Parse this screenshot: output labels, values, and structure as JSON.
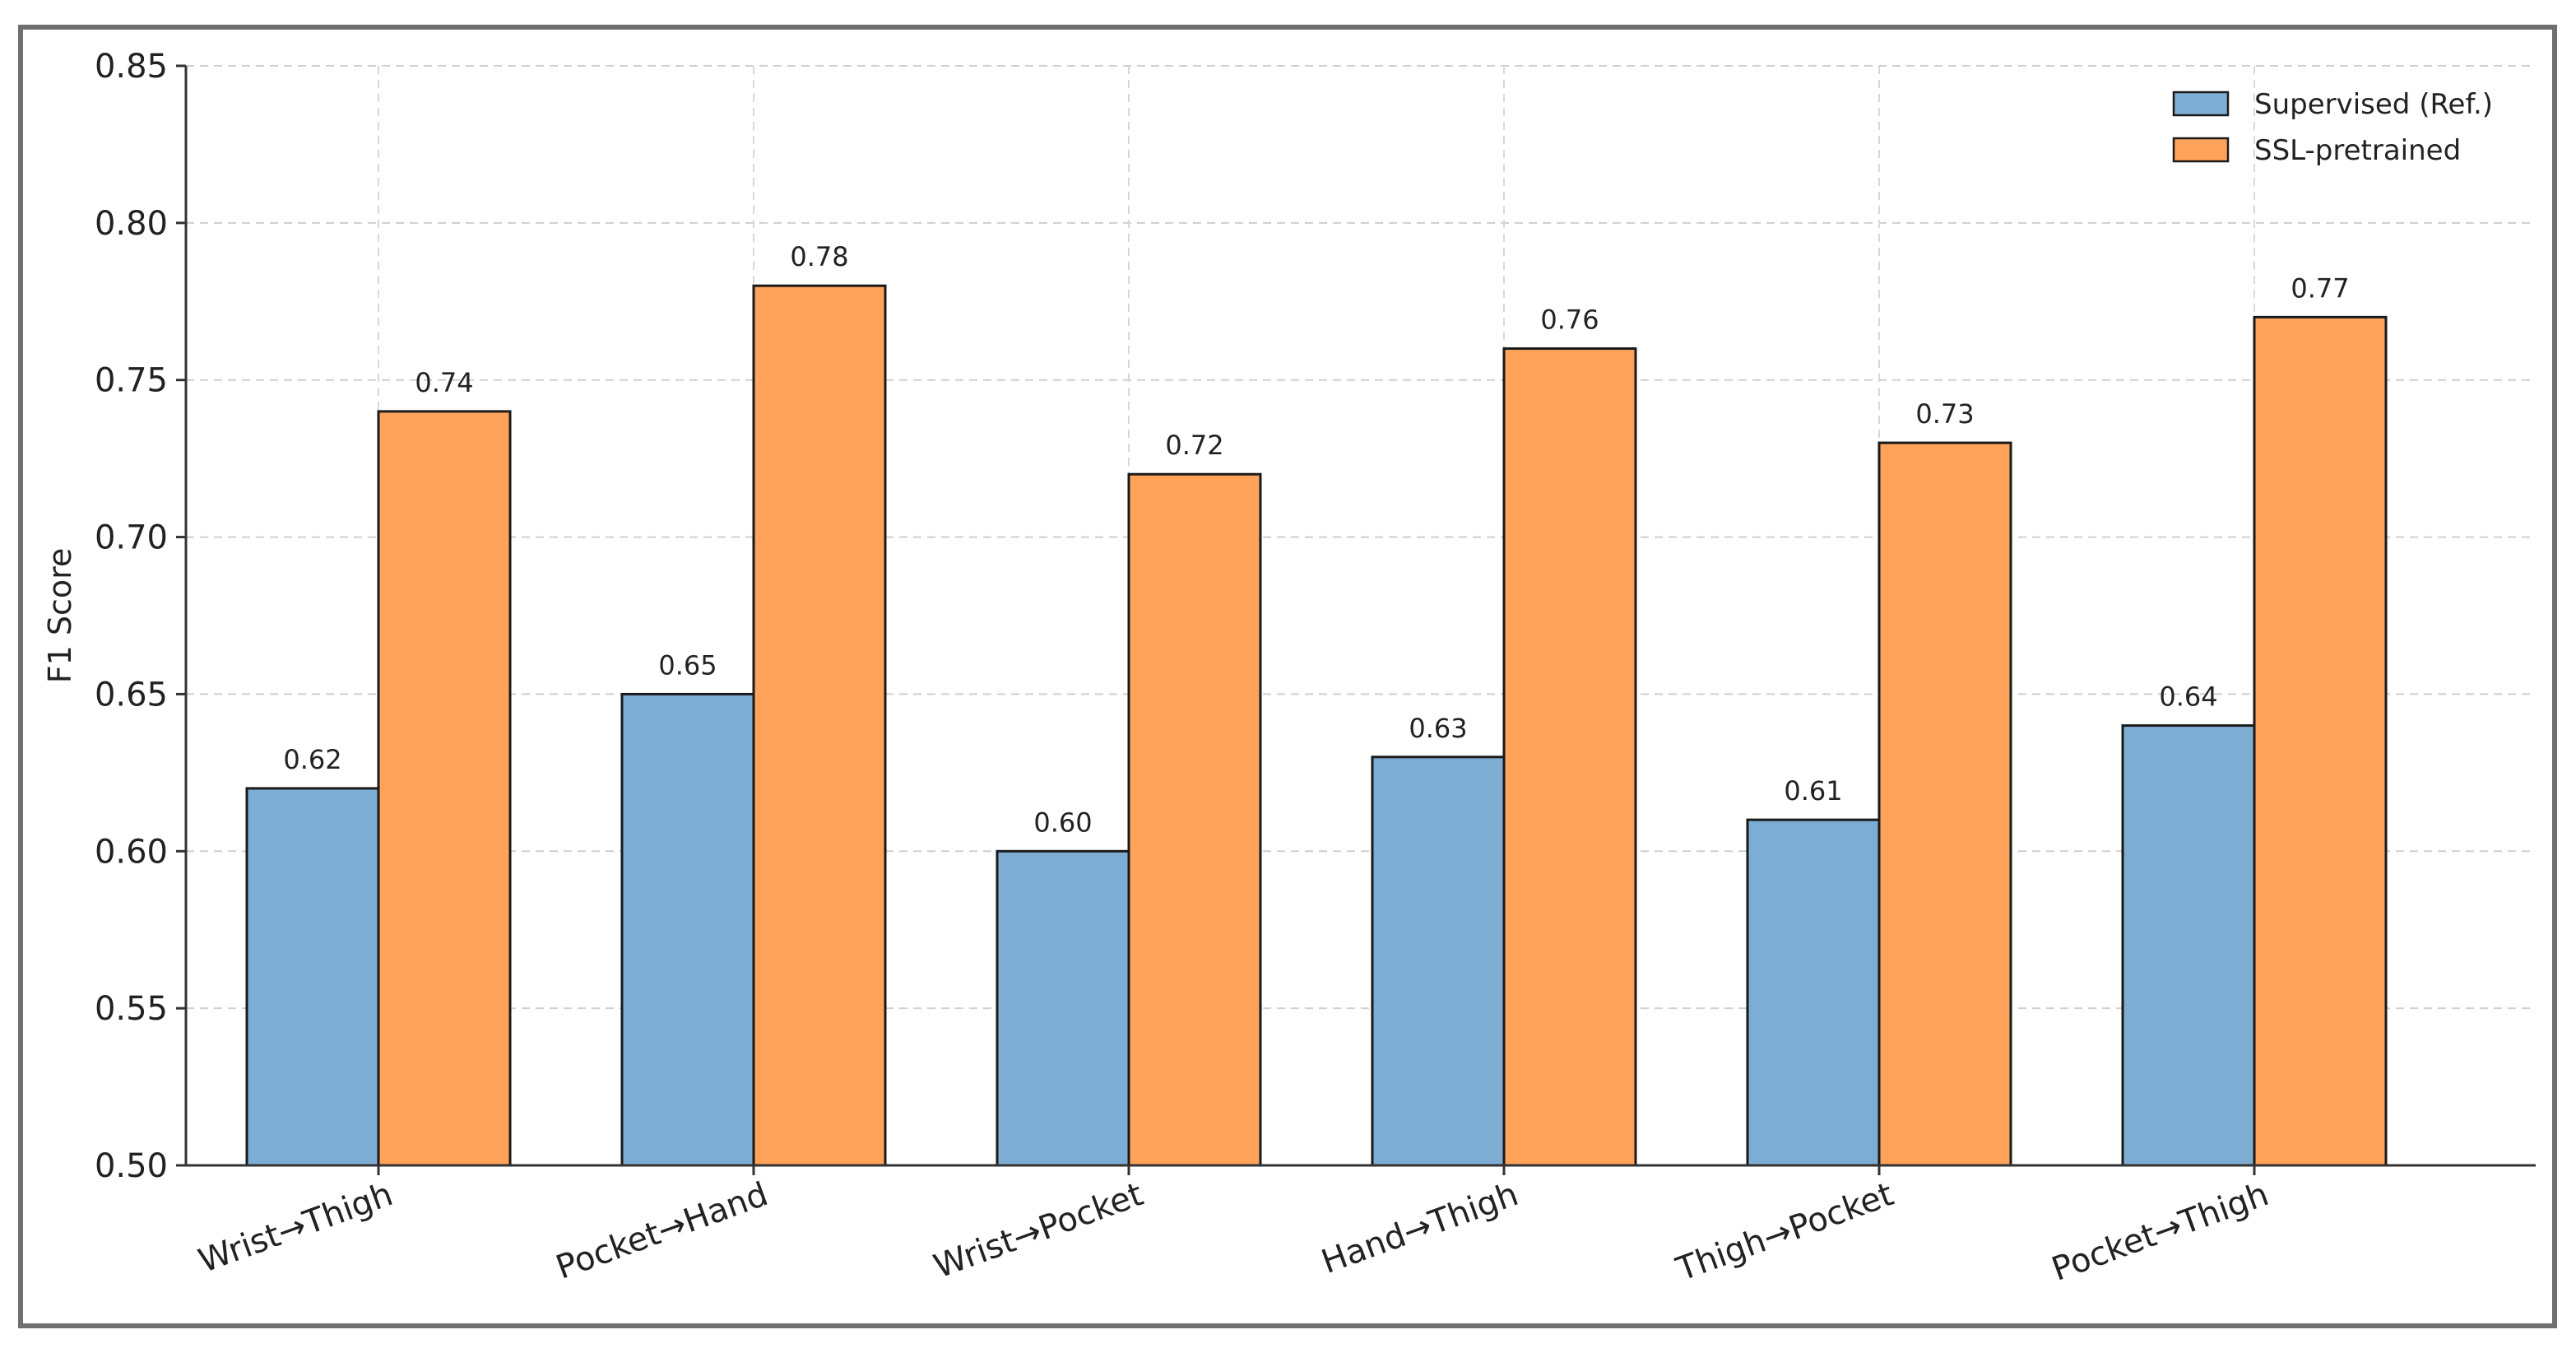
{
  "chart_data": {
    "type": "bar",
    "categories": [
      "Wrist→Thigh",
      "Pocket→Hand",
      "Wrist→Pocket",
      "Hand→Thigh",
      "Thigh→Pocket",
      "Pocket→Thigh"
    ],
    "series": [
      {
        "name": "Supervised (Ref.)",
        "values": [
          0.62,
          0.65,
          0.6,
          0.63,
          0.61,
          0.64
        ],
        "labels": [
          "0.62",
          "0.65",
          "0.60",
          "0.63",
          "0.61",
          "0.64"
        ],
        "color": "#7eadd4"
      },
      {
        "name": "SSL-pretrained",
        "values": [
          0.74,
          0.78,
          0.72,
          0.76,
          0.73,
          0.77
        ],
        "labels": [
          "0.74",
          "0.78",
          "0.72",
          "0.76",
          "0.73",
          "0.77"
        ],
        "color": "#ffa35a"
      }
    ],
    "ylabel": "F1 Score",
    "xlabel": "",
    "ylim": [
      0.5,
      0.85
    ],
    "yticks": [
      "0.50",
      "0.55",
      "0.60",
      "0.65",
      "0.70",
      "0.75",
      "0.80",
      "0.85"
    ],
    "grid": true,
    "legend_position": "top-right"
  }
}
